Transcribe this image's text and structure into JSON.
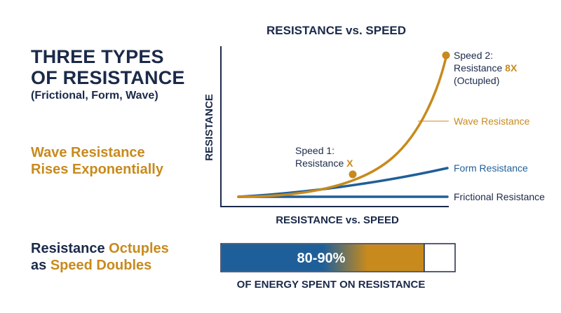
{
  "left_panel": {
    "title_line1": "THREE TYPES",
    "title_line2": "OF RESISTANCE",
    "subtitle": "(Frictional, Form, Wave)",
    "wave_line1": "Wave Resistance",
    "wave_line2": "Rises Exponentially",
    "octuple_prefix": "Resistance ",
    "octuple_highlight": "Octuples",
    "octuple_line2_prefix": "as ",
    "octuple_line2_highlight": "Speed Doubles"
  },
  "chart_data": {
    "type": "line",
    "title": "RESISTANCE vs. SPEED",
    "xlabel": "RESISTANCE vs. SPEED",
    "ylabel": "RESISTANCE",
    "series": [
      {
        "name": "Wave Resistance",
        "color": "#c88a1d"
      },
      {
        "name": "Form Resistance",
        "color": "#1f5f99"
      },
      {
        "name": "Frictional Resistance",
        "color": "#1f5f99"
      }
    ],
    "annotations": {
      "speed1_line1": "Speed 1:",
      "speed1_line2_prefix": "Resistance ",
      "speed1_value": "X",
      "speed2_line1": "Speed 2:",
      "speed2_line2_prefix": "Resistance ",
      "speed2_value": "8X",
      "speed2_line3": "(Octupled)"
    }
  },
  "energy_bar": {
    "label": "80-90%",
    "caption": "OF ENERGY SPENT ON RESISTANCE",
    "fill_fraction": 0.87,
    "colors": {
      "start": "#1f5f99",
      "end": "#c88a1d"
    }
  }
}
